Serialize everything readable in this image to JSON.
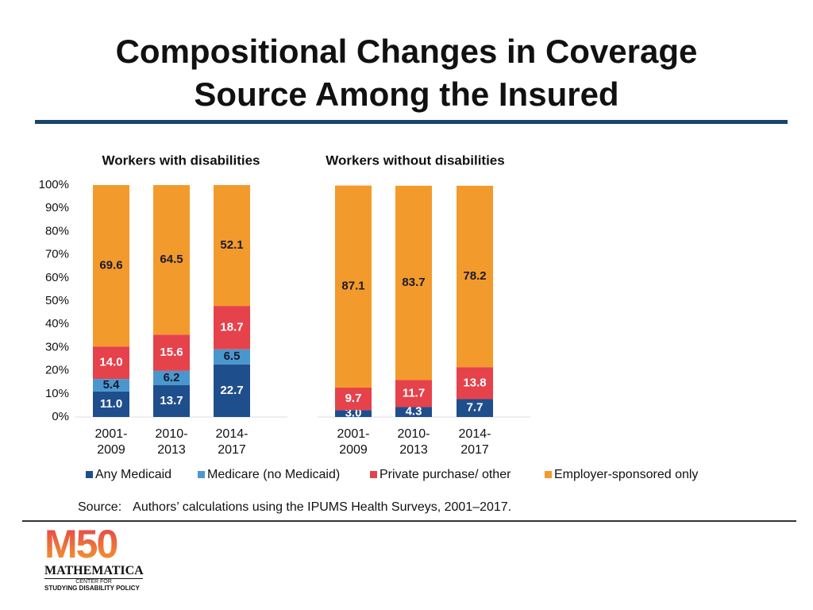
{
  "title": "Compositional Changes in Coverage Source Among the Insured",
  "chart_data": [
    {
      "type": "bar",
      "stacked": true,
      "title": "Workers with disabilities",
      "categories": [
        "2001-2009",
        "2010-2013",
        "2014-2017"
      ],
      "ylim": [
        0,
        100
      ],
      "yticks": [
        {
          "value": 0,
          "label": "0%"
        },
        {
          "value": 10,
          "label": "10%"
        },
        {
          "value": 20,
          "label": "20%"
        },
        {
          "value": 30,
          "label": "30%"
        },
        {
          "value": 40,
          "label": "40%"
        },
        {
          "value": 50,
          "label": "50%"
        },
        {
          "value": 60,
          "label": "60%"
        },
        {
          "value": 70,
          "label": "70%"
        },
        {
          "value": 80,
          "label": "80%"
        },
        {
          "value": 90,
          "label": "90%"
        },
        {
          "value": 100,
          "label": "100%"
        }
      ],
      "series": [
        {
          "name": "Any Medicaid",
          "color": "#1f4e8c",
          "values": [
            11.0,
            13.7,
            22.7
          ],
          "value_labels": [
            "11.0",
            "13.7",
            "22.7"
          ]
        },
        {
          "name": "Medicare (no Medicaid)",
          "color": "#4a97cf",
          "values": [
            5.4,
            6.2,
            6.5
          ],
          "value_labels": [
            "5.4",
            "6.2",
            "6.5"
          ]
        },
        {
          "name": "Private purchase/ other",
          "color": "#e5424b",
          "values": [
            14.0,
            15.6,
            18.7
          ],
          "value_labels": [
            "14.0",
            "15.6",
            "18.7"
          ]
        },
        {
          "name": "Employer-sponsored only",
          "color": "#f39a2c",
          "values": [
            69.6,
            64.5,
            52.1
          ],
          "value_labels": [
            "69.6",
            "64.5",
            "52.1"
          ]
        }
      ]
    },
    {
      "type": "bar",
      "stacked": true,
      "title": "Workers without disabilities",
      "categories": [
        "2001-2009",
        "2010-2013",
        "2014-2017"
      ],
      "ylim": [
        0,
        100
      ],
      "series": [
        {
          "color": "#1f4e8c",
          "values": [
            3.0,
            4.3,
            7.7
          ],
          "value_labels": [
            "3.0",
            "4.3",
            "7.7"
          ]
        },
        {
          "color": "#e5424b",
          "values": [
            9.7,
            11.7,
            13.8
          ],
          "value_labels": [
            "9.7",
            "11.7",
            "13.8"
          ]
        },
        {
          "color": "#f39a2c",
          "values": [
            87.1,
            83.7,
            78.2
          ],
          "value_labels": [
            "87.1",
            "83.7",
            "78.2"
          ]
        }
      ]
    }
  ],
  "source": {
    "label": "Source:",
    "text": "Authors’ calculations using the IPUMS Health Surveys, 2001–2017."
  },
  "logo": {
    "mark": "M50",
    "name": "MATHEMATICA",
    "line1": "CENTER FOR",
    "line2": "STUDYING DISABILITY POLICY"
  }
}
